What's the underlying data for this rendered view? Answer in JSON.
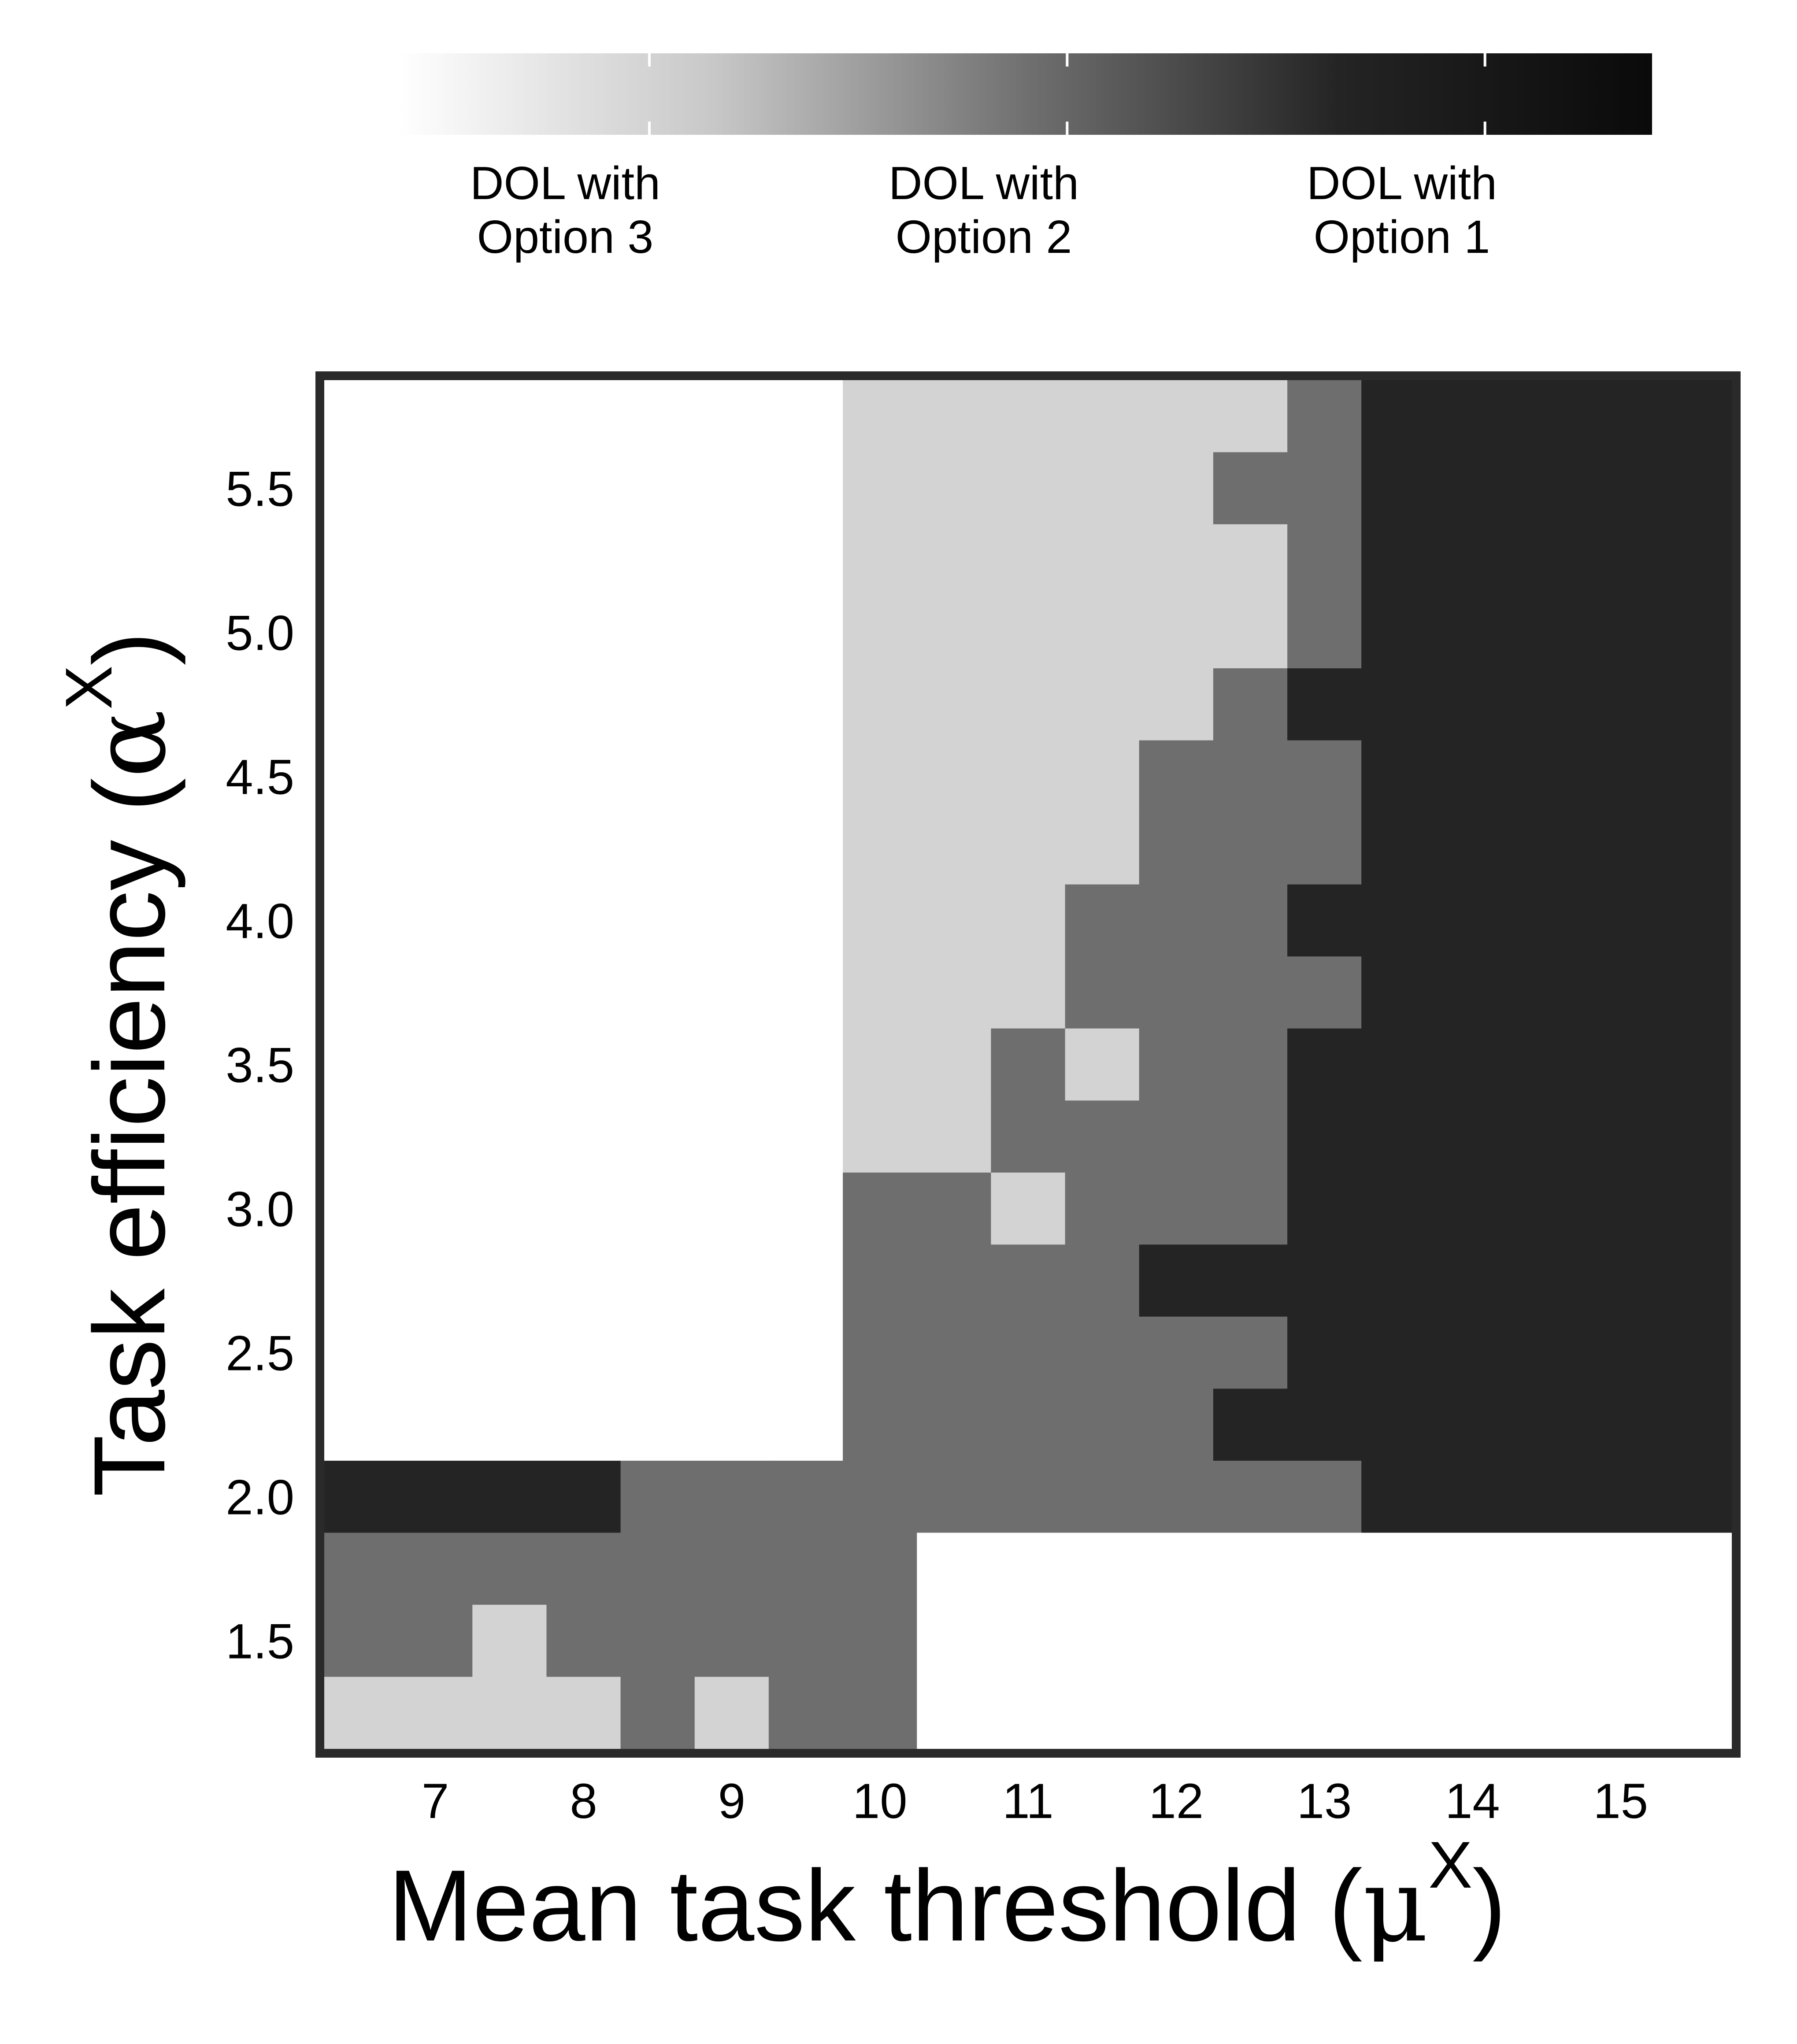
{
  "chart_data": {
    "type": "heatmap",
    "x": [
      6.5,
      7,
      7.5,
      8,
      8.5,
      9,
      9.5,
      10,
      10.5,
      11,
      11.5,
      12,
      12.5,
      13,
      13.5,
      14,
      14.5,
      15,
      15.5
    ],
    "y": [
      5.75,
      5.5,
      5.25,
      5.0,
      4.75,
      4.5,
      4.25,
      4.0,
      3.75,
      3.5,
      3.25,
      3.0,
      2.75,
      2.5,
      2.25,
      2.0,
      1.75,
      1.5,
      1.25
    ],
    "values": [
      [
        0,
        0,
        0,
        0,
        0,
        0,
        0,
        1,
        1,
        1,
        1,
        1,
        1,
        2,
        3,
        3,
        3,
        3,
        3
      ],
      [
        0,
        0,
        0,
        0,
        0,
        0,
        0,
        1,
        1,
        1,
        1,
        1,
        2,
        2,
        3,
        3,
        3,
        3,
        3
      ],
      [
        0,
        0,
        0,
        0,
        0,
        0,
        0,
        1,
        1,
        1,
        1,
        1,
        1,
        2,
        3,
        3,
        3,
        3,
        3
      ],
      [
        0,
        0,
        0,
        0,
        0,
        0,
        0,
        1,
        1,
        1,
        1,
        1,
        1,
        2,
        3,
        3,
        3,
        3,
        3
      ],
      [
        0,
        0,
        0,
        0,
        0,
        0,
        0,
        1,
        1,
        1,
        1,
        1,
        2,
        3,
        3,
        3,
        3,
        3,
        3
      ],
      [
        0,
        0,
        0,
        0,
        0,
        0,
        0,
        1,
        1,
        1,
        1,
        2,
        2,
        2,
        3,
        3,
        3,
        3,
        3
      ],
      [
        0,
        0,
        0,
        0,
        0,
        0,
        0,
        1,
        1,
        1,
        1,
        2,
        2,
        2,
        3,
        3,
        3,
        3,
        3
      ],
      [
        0,
        0,
        0,
        0,
        0,
        0,
        0,
        1,
        1,
        1,
        2,
        2,
        2,
        3,
        3,
        3,
        3,
        3,
        3
      ],
      [
        0,
        0,
        0,
        0,
        0,
        0,
        0,
        1,
        1,
        1,
        2,
        2,
        2,
        2,
        3,
        3,
        3,
        3,
        3
      ],
      [
        0,
        0,
        0,
        0,
        0,
        0,
        0,
        1,
        1,
        2,
        1,
        2,
        2,
        3,
        3,
        3,
        3,
        3,
        3
      ],
      [
        0,
        0,
        0,
        0,
        0,
        0,
        0,
        1,
        1,
        2,
        2,
        2,
        2,
        3,
        3,
        3,
        3,
        3,
        3
      ],
      [
        0,
        0,
        0,
        0,
        0,
        0,
        0,
        2,
        2,
        1,
        2,
        2,
        2,
        3,
        3,
        3,
        3,
        3,
        3
      ],
      [
        0,
        0,
        0,
        0,
        0,
        0,
        0,
        2,
        2,
        2,
        2,
        3,
        3,
        3,
        3,
        3,
        3,
        3,
        3
      ],
      [
        0,
        0,
        0,
        0,
        0,
        0,
        0,
        2,
        2,
        2,
        2,
        2,
        2,
        3,
        3,
        3,
        3,
        3,
        3
      ],
      [
        0,
        0,
        0,
        0,
        0,
        0,
        0,
        2,
        2,
        2,
        2,
        2,
        3,
        3,
        3,
        3,
        3,
        3,
        3
      ],
      [
        3,
        3,
        3,
        3,
        2,
        2,
        2,
        2,
        2,
        2,
        2,
        2,
        2,
        2,
        3,
        3,
        3,
        3,
        3
      ],
      [
        2,
        2,
        2,
        2,
        2,
        2,
        2,
        2,
        0,
        0,
        0,
        0,
        0,
        0,
        0,
        0,
        0,
        0,
        0
      ],
      [
        2,
        2,
        1,
        2,
        2,
        2,
        2,
        2,
        0,
        0,
        0,
        0,
        0,
        0,
        0,
        0,
        0,
        0,
        0
      ],
      [
        1,
        1,
        1,
        1,
        2,
        1,
        2,
        2,
        0,
        0,
        0,
        0,
        0,
        0,
        0,
        0,
        0,
        0,
        0
      ]
    ],
    "xlabel_text": "Mean task threshold (",
    "xlabel_symbol": "μ",
    "xlabel_sup": "X",
    "xlabel_close": ")",
    "ylabel_text": "Task efficiency (",
    "ylabel_symbol": "α",
    "ylabel_sup": "X",
    "ylabel_close": ")",
    "xticks": [
      7,
      8,
      9,
      10,
      11,
      12,
      13,
      14,
      15
    ],
    "xtick_labels": [
      "7",
      "8",
      "9",
      "10",
      "11",
      "12",
      "13",
      "14",
      "15"
    ],
    "yticks": [
      1.5,
      2.0,
      2.5,
      3.0,
      3.5,
      4.0,
      4.5,
      5.0,
      5.5
    ],
    "ytick_labels": [
      "1.5",
      "2.0",
      "2.5",
      "3.0",
      "3.5",
      "4.0",
      "4.5",
      "5.0",
      "5.5"
    ],
    "xlim": [
      6.25,
      15.75
    ],
    "ylim": [
      1.125,
      5.875
    ],
    "grid": false,
    "colorbar": {
      "position": "top",
      "range": [
        0,
        3
      ],
      "ticks": [
        0.6,
        1.6,
        2.6
      ],
      "labels": [
        {
          "line1": "DOL with",
          "line2": "Option 3"
        },
        {
          "line1": "DOL with",
          "line2": "Option 2"
        },
        {
          "line1": "DOL with",
          "line2": "Option 1"
        }
      ],
      "gradient_colors": [
        "#ffffff",
        "#c8c8c8",
        "#707070",
        "#242424",
        "#0a0a0a"
      ]
    },
    "category_colors": [
      "#ffffff",
      "#d3d3d3",
      "#6e6e6e",
      "#242424"
    ],
    "frame_color": "#2a2a2a"
  }
}
